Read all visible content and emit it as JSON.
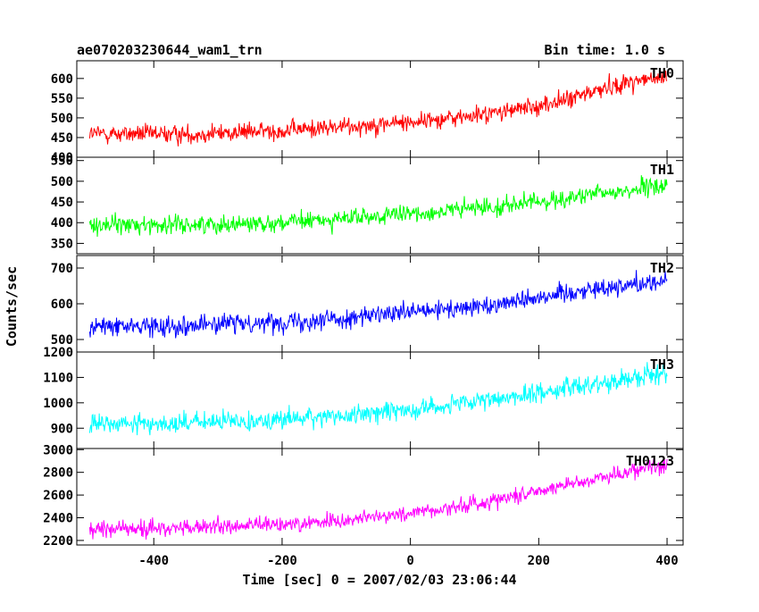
{
  "header": {
    "title": "ae070203230644_wam1_trn",
    "bin_time": "Bin time: 1.0 s"
  },
  "chart_data": {
    "type": "line",
    "xlabel": "Time [sec] 0 = 2007/02/03 23:06:44",
    "ylabel": "Counts/sec",
    "xlim": [
      -520,
      425
    ],
    "x_ticks": [
      -400,
      -200,
      0,
      200,
      400
    ],
    "bin_time_sec": 1.0,
    "time_range": [
      -500,
      400
    ],
    "grid": false,
    "panels": [
      {
        "name": "TH0",
        "color": "#ff0000",
        "ylim": [
          400,
          645
        ],
        "y_ticks": [
          400,
          450,
          500,
          550,
          600
        ],
        "trend_anchors": [
          [
            -500,
            460
          ],
          [
            -350,
            458
          ],
          [
            -200,
            468
          ],
          [
            -100,
            478
          ],
          [
            0,
            490
          ],
          [
            100,
            505
          ],
          [
            200,
            530
          ],
          [
            250,
            548
          ],
          [
            300,
            575
          ],
          [
            350,
            595
          ],
          [
            400,
            600
          ]
        ],
        "noise_amplitude": 30
      },
      {
        "name": "TH1",
        "color": "#00ff00",
        "ylim": [
          325,
          558
        ],
        "y_ticks": [
          350,
          400,
          450,
          500,
          550
        ],
        "trend_anchors": [
          [
            -500,
            395
          ],
          [
            -350,
            395
          ],
          [
            -200,
            400
          ],
          [
            -100,
            410
          ],
          [
            0,
            420
          ],
          [
            100,
            435
          ],
          [
            200,
            450
          ],
          [
            300,
            470
          ],
          [
            400,
            490
          ]
        ],
        "noise_amplitude": 28
      },
      {
        "name": "TH2",
        "color": "#0000ff",
        "ylim": [
          465,
          735
        ],
        "y_ticks": [
          500,
          600,
          700
        ],
        "trend_anchors": [
          [
            -500,
            535
          ],
          [
            -350,
            540
          ],
          [
            -200,
            550
          ],
          [
            -100,
            560
          ],
          [
            0,
            575
          ],
          [
            100,
            590
          ],
          [
            200,
            620
          ],
          [
            300,
            645
          ],
          [
            400,
            665
          ]
        ],
        "noise_amplitude": 35
      },
      {
        "name": "TH3",
        "color": "#00ffff",
        "ylim": [
          820,
          1200
        ],
        "y_ticks": [
          900,
          1000,
          1100,
          1200
        ],
        "trend_anchors": [
          [
            -500,
            915
          ],
          [
            -350,
            920
          ],
          [
            -200,
            935
          ],
          [
            -100,
            950
          ],
          [
            0,
            975
          ],
          [
            100,
            1000
          ],
          [
            200,
            1040
          ],
          [
            300,
            1080
          ],
          [
            400,
            1120
          ]
        ],
        "noise_amplitude": 50
      },
      {
        "name": "TH0123",
        "color": "#ff00ff",
        "ylim": [
          2160,
          3010
        ],
        "y_ticks": [
          2200,
          2400,
          2600,
          2800,
          3000
        ],
        "trend_anchors": [
          [
            -500,
            2300
          ],
          [
            -350,
            2310
          ],
          [
            -200,
            2340
          ],
          [
            -100,
            2380
          ],
          [
            0,
            2440
          ],
          [
            100,
            2520
          ],
          [
            200,
            2640
          ],
          [
            300,
            2760
          ],
          [
            400,
            2880
          ]
        ],
        "noise_amplitude": 90
      }
    ]
  }
}
